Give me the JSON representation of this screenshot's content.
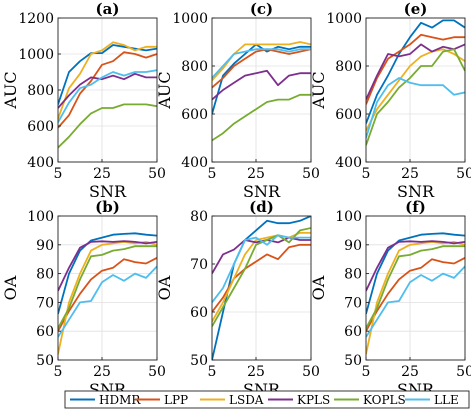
{
  "chart_data": [
    {
      "panel": "(a)",
      "type": "line",
      "xlabel": "SNR",
      "ylabel": "AUC",
      "xlim": [
        5,
        50
      ],
      "ylim": [
        400,
        1200
      ],
      "xticks": [
        5,
        25,
        50
      ],
      "yticks": [
        400,
        600,
        800,
        1000,
        1200
      ],
      "grid": true,
      "x": [
        5,
        10,
        15,
        20,
        25,
        30,
        35,
        40,
        45,
        50
      ],
      "series": [
        {
          "name": "HDMR",
          "values": [
            720,
            900,
            960,
            1005,
            1005,
            1050,
            1040,
            1030,
            1020,
            1030
          ]
        },
        {
          "name": "LPP",
          "values": [
            590,
            660,
            780,
            850,
            940,
            960,
            1010,
            1000,
            980,
            1000
          ]
        },
        {
          "name": "LSDA",
          "values": [
            640,
            810,
            890,
            1000,
            1020,
            1065,
            1050,
            1020,
            1040,
            1040
          ]
        },
        {
          "name": "KPLS",
          "values": [
            700,
            770,
            830,
            870,
            860,
            880,
            860,
            890,
            870,
            870
          ]
        },
        {
          "name": "KOPLS",
          "values": [
            480,
            540,
            610,
            670,
            700,
            700,
            720,
            720,
            720,
            710
          ]
        },
        {
          "name": "LLE",
          "values": [
            620,
            730,
            810,
            830,
            870,
            900,
            880,
            900,
            900,
            910
          ]
        }
      ]
    },
    {
      "panel": "(c)",
      "type": "line",
      "xlabel": "SNR",
      "ylabel": "AUC",
      "xlim": [
        5,
        50
      ],
      "ylim": [
        400,
        1000
      ],
      "xticks": [
        5,
        25,
        50
      ],
      "yticks": [
        400,
        600,
        800,
        1000
      ],
      "grid": true,
      "x": [
        5,
        10,
        15,
        20,
        25,
        30,
        35,
        40,
        45,
        50
      ],
      "series": [
        {
          "name": "HDMR",
          "values": [
            600,
            760,
            810,
            850,
            890,
            860,
            880,
            870,
            880,
            880
          ]
        },
        {
          "name": "LPP",
          "values": [
            710,
            750,
            800,
            830,
            860,
            870,
            860,
            850,
            860,
            870
          ]
        },
        {
          "name": "LSDA",
          "values": [
            740,
            790,
            850,
            890,
            890,
            890,
            890,
            890,
            900,
            890
          ]
        },
        {
          "name": "KPLS",
          "values": [
            660,
            700,
            730,
            760,
            770,
            780,
            720,
            760,
            770,
            770
          ]
        },
        {
          "name": "KOPLS",
          "values": [
            490,
            520,
            560,
            590,
            620,
            650,
            660,
            660,
            680,
            680
          ]
        },
        {
          "name": "LLE",
          "values": [
            750,
            800,
            850,
            860,
            870,
            870,
            870,
            860,
            870,
            870
          ]
        }
      ]
    },
    {
      "panel": "(e)",
      "type": "line",
      "xlabel": "SNR",
      "ylabel": "AUC",
      "xlim": [
        5,
        50
      ],
      "ylim": [
        400,
        1000
      ],
      "xticks": [
        5,
        25,
        50
      ],
      "yticks": [
        400,
        600,
        800,
        1000
      ],
      "grid": true,
      "x": [
        5,
        10,
        15,
        20,
        25,
        30,
        35,
        40,
        45,
        50
      ],
      "series": [
        {
          "name": "HDMR",
          "values": [
            560,
            680,
            760,
            850,
            920,
            980,
            960,
            990,
            990,
            960
          ]
        },
        {
          "name": "LPP",
          "values": [
            640,
            750,
            830,
            860,
            890,
            930,
            920,
            910,
            920,
            920
          ]
        },
        {
          "name": "LSDA",
          "values": [
            530,
            620,
            680,
            740,
            800,
            840,
            860,
            870,
            850,
            820
          ]
        },
        {
          "name": "KPLS",
          "values": [
            660,
            760,
            850,
            840,
            850,
            890,
            860,
            880,
            870,
            890
          ]
        },
        {
          "name": "KOPLS",
          "values": [
            470,
            600,
            650,
            710,
            750,
            800,
            800,
            860,
            870,
            780
          ]
        },
        {
          "name": "LLE",
          "values": [
            500,
            650,
            720,
            750,
            730,
            720,
            720,
            720,
            680,
            690
          ]
        }
      ]
    },
    {
      "panel": "(b)",
      "type": "line",
      "xlabel": "SNR",
      "ylabel": "OA",
      "xlim": [
        5,
        50
      ],
      "ylim": [
        50,
        100
      ],
      "xticks": [
        5,
        25,
        50
      ],
      "yticks": [
        50,
        60,
        70,
        80,
        90,
        100
      ],
      "grid": true,
      "x": [
        5,
        10,
        15,
        20,
        25,
        30,
        35,
        40,
        45,
        50
      ],
      "series": [
        {
          "name": "HDMR",
          "values": [
            66,
            80,
            88,
            91.5,
            92.5,
            93.5,
            93.8,
            94,
            93.5,
            93.2
          ]
        },
        {
          "name": "LPP",
          "values": [
            60,
            67,
            73,
            78,
            81,
            82,
            85,
            84,
            83.5,
            85.5
          ]
        },
        {
          "name": "LSDA",
          "values": [
            52,
            70,
            80,
            88,
            90,
            90.5,
            91,
            90.5,
            91,
            90
          ]
        },
        {
          "name": "KPLS",
          "values": [
            74,
            82,
            89,
            91,
            91.2,
            91,
            91.3,
            91,
            90.5,
            91
          ]
        },
        {
          "name": "KOPLS",
          "values": [
            61,
            68,
            78,
            86,
            86.5,
            88,
            88.5,
            89.5,
            89.5,
            89.5
          ]
        },
        {
          "name": "LLE",
          "values": [
            58,
            64,
            70,
            70.5,
            77,
            79.5,
            77.5,
            80,
            78.5,
            82.5
          ]
        }
      ]
    },
    {
      "panel": "(d)",
      "type": "line",
      "xlabel": "SNR",
      "ylabel": "OA",
      "xlim": [
        5,
        50
      ],
      "ylim": [
        50,
        80
      ],
      "xticks": [
        5,
        25,
        50
      ],
      "yticks": [
        50,
        60,
        70,
        80
      ],
      "grid": true,
      "x": [
        5,
        10,
        15,
        20,
        25,
        30,
        35,
        40,
        45,
        50
      ],
      "series": [
        {
          "name": "HDMR",
          "values": [
            50,
            60,
            70,
            75,
            77,
            79,
            78.5,
            78.5,
            79,
            80
          ]
        },
        {
          "name": "LPP",
          "values": [
            60,
            63,
            67,
            69,
            70.5,
            72,
            71,
            73.5,
            74,
            74
          ]
        },
        {
          "name": "LSDA",
          "values": [
            58,
            62,
            67,
            72,
            75,
            75.5,
            76,
            75.5,
            76.5,
            76.5
          ]
        },
        {
          "name": "KPLS",
          "values": [
            68,
            72,
            73,
            75,
            74.5,
            75,
            74.5,
            75.5,
            75,
            75
          ]
        },
        {
          "name": "KOPLS",
          "values": [
            57,
            61,
            65,
            69,
            74,
            75,
            76,
            74.5,
            77,
            77.5
          ]
        },
        {
          "name": "LLE",
          "values": [
            62,
            65,
            70,
            75,
            75.5,
            74,
            76,
            75.5,
            75.5,
            75.5
          ]
        }
      ]
    },
    {
      "panel": "(f)",
      "type": "line",
      "xlabel": "SNR",
      "ylabel": "OA",
      "xlim": [
        5,
        50
      ],
      "ylim": [
        50,
        100
      ],
      "xticks": [
        5,
        25,
        50
      ],
      "yticks": [
        50,
        60,
        70,
        80,
        90,
        100
      ],
      "grid": true,
      "x": [
        5,
        10,
        15,
        20,
        25,
        30,
        35,
        40,
        45,
        50
      ],
      "series": [
        {
          "name": "HDMR",
          "values": [
            66,
            80,
            88,
            91.5,
            92.5,
            93.5,
            93.8,
            94,
            93.5,
            93.2
          ]
        },
        {
          "name": "LPP",
          "values": [
            60,
            67,
            73,
            78,
            81,
            82,
            85,
            84,
            83.5,
            85.5
          ]
        },
        {
          "name": "LSDA",
          "values": [
            52,
            70,
            80,
            88,
            90,
            90.5,
            91,
            90.5,
            91,
            90
          ]
        },
        {
          "name": "KPLS",
          "values": [
            74,
            82,
            89,
            91,
            91.2,
            91,
            91.3,
            91,
            90.5,
            91
          ]
        },
        {
          "name": "KOPLS",
          "values": [
            61,
            68,
            78,
            86,
            86.5,
            88,
            88.5,
            89.5,
            89.5,
            89.5
          ]
        },
        {
          "name": "LLE",
          "values": [
            58,
            64,
            70,
            70.5,
            77,
            79.5,
            77.5,
            80,
            78.5,
            82.5
          ]
        }
      ]
    }
  ],
  "legend": {
    "placement": "bottom",
    "entries": [
      {
        "name": "HDMR",
        "color": "#0072BD"
      },
      {
        "name": "LPP",
        "color": "#D95319"
      },
      {
        "name": "LSDA",
        "color": "#EDB120"
      },
      {
        "name": "KPLS",
        "color": "#7E2F8E"
      },
      {
        "name": "KOPLS",
        "color": "#77AC30"
      },
      {
        "name": "LLE",
        "color": "#4DBEEE"
      }
    ]
  }
}
